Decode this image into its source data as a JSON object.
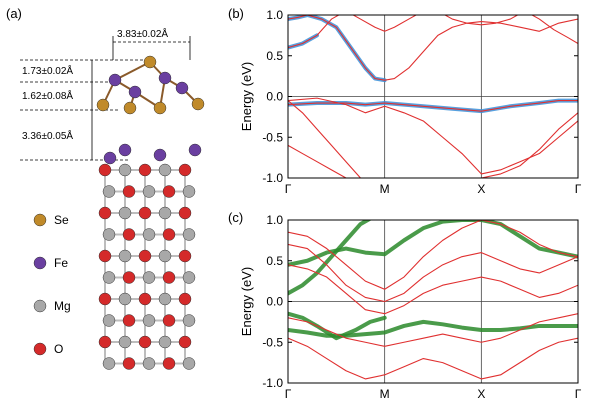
{
  "panels": {
    "a": {
      "label": "(a)",
      "dimensions": [
        "3.83±0.02Å",
        "1.73±0.02Å",
        "1.62±0.08Å",
        "3.36±0.05Å"
      ],
      "legend": [
        {
          "name": "Se",
          "color": "#c08a2a"
        },
        {
          "name": "Fe",
          "color": "#6a3fa0"
        },
        {
          "name": "Mg",
          "color": "#a8a8a8"
        },
        {
          "name": "O",
          "color": "#d42a2a"
        }
      ]
    },
    "b": {
      "label": "(b)"
    },
    "c": {
      "label": "(c)"
    }
  },
  "chart_data": [
    {
      "type": "line",
      "panel": "b",
      "title": "",
      "xlabel": "",
      "ylabel": "Energy (eV)",
      "ylim": [
        -1.0,
        1.0
      ],
      "yticks": [
        "1.0",
        "0.5",
        "0.0",
        "-0.5",
        "-1.0"
      ],
      "xticks": [
        "Γ",
        "M",
        "X",
        "Γ"
      ],
      "fermi_level": 0.0,
      "colors": {
        "bands": "#e03030",
        "projection": "#3a8fd8"
      },
      "series": [
        {
          "role": "band",
          "x": [
            0,
            0.15,
            0.3,
            0.45,
            0.6,
            0.75,
            0.9,
            1,
            1.1,
            1.25,
            1.4,
            1.55,
            1.7,
            1.85,
            2,
            2.15,
            2.3,
            2.45,
            2.6,
            2.75,
            2.9,
            3
          ],
          "y": [
            0.6,
            0.65,
            0.75,
            0.95,
            1.05,
            0.95,
            0.85,
            0.8,
            0.85,
            0.95,
            1.05,
            1.05,
            0.95,
            0.9,
            0.88,
            0.9,
            0.95,
            1.05,
            0.95,
            0.82,
            0.72,
            0.65
          ]
        },
        {
          "role": "band",
          "x": [
            0,
            0.1,
            0.2,
            0.35,
            0.5,
            0.65,
            0.8,
            0.9,
            1,
            1.1,
            1.25,
            1.4,
            1.55,
            1.7,
            1.85,
            2,
            2.2,
            2.4,
            2.6,
            2.8,
            3
          ],
          "y": [
            0.95,
            0.97,
            1.0,
            0.95,
            0.85,
            0.6,
            0.35,
            0.22,
            0.2,
            0.22,
            0.35,
            0.55,
            0.75,
            0.85,
            0.9,
            0.92,
            0.9,
            0.85,
            0.8,
            0.9,
            0.95
          ]
        },
        {
          "role": "band",
          "x": [
            0,
            0.3,
            0.6,
            0.8,
            1,
            1.2,
            1.4,
            1.6,
            1.8,
            2,
            2.2,
            2.4,
            2.6,
            2.8,
            3
          ],
          "y": [
            -0.05,
            -0.02,
            -0.1,
            -0.2,
            -0.12,
            -0.2,
            -0.3,
            -0.5,
            -0.7,
            -0.95,
            -0.9,
            -0.8,
            -0.7,
            -0.5,
            -0.3
          ]
        },
        {
          "role": "band",
          "x": [
            0,
            0.3,
            0.6,
            0.8,
            1,
            1.2,
            1.4,
            1.7,
            2,
            2.3,
            2.6,
            2.8,
            3
          ],
          "y": [
            -0.1,
            -0.08,
            -0.08,
            -0.1,
            -0.08,
            -0.1,
            -0.12,
            -0.15,
            -0.18,
            -0.12,
            -0.08,
            -0.05,
            -0.05
          ]
        },
        {
          "role": "band",
          "x": [
            0,
            0.15,
            0.3,
            0.45,
            0.6,
            0.75
          ],
          "y": [
            -0.05,
            -0.2,
            -0.4,
            -0.6,
            -0.8,
            -1.0
          ]
        },
        {
          "role": "band",
          "x": [
            0,
            0.15,
            0.3,
            0.45,
            0.6
          ],
          "y": [
            -0.6,
            -0.7,
            -0.8,
            -0.9,
            -1.0
          ]
        },
        {
          "role": "band",
          "x": [
            2,
            2.2,
            2.4,
            2.6,
            2.8,
            3
          ],
          "y": [
            -1.0,
            -0.95,
            -0.85,
            -0.65,
            -0.4,
            -0.2
          ]
        },
        {
          "role": "projection",
          "x": [
            0,
            0.3,
            0.6,
            0.8,
            1,
            1.2,
            1.4,
            1.7,
            2,
            2.3,
            2.6,
            2.8,
            3
          ],
          "y": [
            -0.1,
            -0.08,
            -0.08,
            -0.1,
            -0.08,
            -0.1,
            -0.12,
            -0.15,
            -0.18,
            -0.12,
            -0.08,
            -0.05,
            -0.05
          ]
        },
        {
          "role": "projection",
          "x": [
            0,
            0.1,
            0.2,
            0.35,
            0.5,
            0.65,
            0.8,
            0.9,
            1
          ],
          "y": [
            0.95,
            0.97,
            1.0,
            0.95,
            0.85,
            0.6,
            0.35,
            0.22,
            0.2
          ]
        },
        {
          "role": "projection",
          "x": [
            0,
            0.15,
            0.3
          ],
          "y": [
            0.6,
            0.65,
            0.75
          ]
        }
      ]
    },
    {
      "type": "line",
      "panel": "c",
      "title": "",
      "xlabel": "",
      "ylabel": "Energy (eV)",
      "ylim": [
        -1.0,
        1.0
      ],
      "yticks": [
        "1.0",
        "0.5",
        "0.0",
        "-0.5",
        "-1.0"
      ],
      "xticks": [
        "Γ",
        "M",
        "X",
        "Γ"
      ],
      "fermi_level": 0.0,
      "colors": {
        "bands": "#e03030",
        "projection": "#2a8a2a"
      },
      "series": [
        {
          "role": "band",
          "x": [
            0,
            0.2,
            0.4,
            0.6,
            0.8,
            1,
            1.2,
            1.4,
            1.6,
            1.8,
            2,
            2.2,
            2.4,
            2.6,
            2.8,
            3
          ],
          "y": [
            0.85,
            0.8,
            0.65,
            0.45,
            0.25,
            0.15,
            0.3,
            0.55,
            0.75,
            0.9,
            1.0,
            0.95,
            0.85,
            0.7,
            0.6,
            0.55
          ]
        },
        {
          "role": "band",
          "x": [
            0,
            0.2,
            0.4,
            0.6,
            0.8,
            1,
            1.2,
            1.4,
            1.6,
            1.8,
            2,
            2.2,
            2.4,
            2.6,
            2.8,
            3
          ],
          "y": [
            0.7,
            0.65,
            0.45,
            0.2,
            0.05,
            0.0,
            0.1,
            0.3,
            0.45,
            0.55,
            0.6,
            0.5,
            0.4,
            0.35,
            0.45,
            0.55
          ]
        },
        {
          "role": "band",
          "x": [
            0,
            0.2,
            0.4,
            0.6,
            0.8,
            1,
            1.2,
            1.4,
            1.6,
            1.8,
            2,
            2.2,
            2.4,
            2.6,
            2.8,
            3
          ],
          "y": [
            0.45,
            0.4,
            0.3,
            0.1,
            -0.1,
            -0.15,
            -0.05,
            0.1,
            0.2,
            0.25,
            0.3,
            0.25,
            0.15,
            0.05,
            0.1,
            0.2
          ]
        },
        {
          "role": "band",
          "x": [
            0,
            0.2,
            0.4,
            0.6,
            0.8,
            1,
            1.2,
            1.4,
            1.6,
            1.8,
            2,
            2.2,
            2.4,
            2.6,
            2.8,
            3
          ],
          "y": [
            -0.2,
            -0.25,
            -0.35,
            -0.45,
            -0.5,
            -0.55,
            -0.5,
            -0.45,
            -0.4,
            -0.45,
            -0.5,
            -0.45,
            -0.35,
            -0.25,
            -0.2,
            -0.15
          ]
        },
        {
          "role": "band",
          "x": [
            0,
            0.2,
            0.4,
            0.6,
            0.8,
            1,
            1.2,
            1.4,
            1.6,
            1.8,
            2,
            2.2,
            2.4,
            2.6,
            2.8,
            3
          ],
          "y": [
            -0.45,
            -0.55,
            -0.7,
            -0.85,
            -0.95,
            -0.9,
            -0.8,
            -0.7,
            -0.75,
            -0.85,
            -0.95,
            -0.9,
            -0.75,
            -0.6,
            -0.5,
            -0.45
          ]
        },
        {
          "role": "projection",
          "x": [
            0,
            0.2,
            0.4,
            0.6,
            0.8,
            1,
            1.2,
            1.4,
            1.6,
            1.8,
            2,
            2.2,
            2.4,
            2.6,
            2.8,
            3
          ],
          "y": [
            0.45,
            0.5,
            0.6,
            0.65,
            0.6,
            0.58,
            0.75,
            0.9,
            0.98,
            1.0,
            1.0,
            0.95,
            0.8,
            0.65,
            0.6,
            0.55
          ]
        },
        {
          "role": "projection",
          "x": [
            0,
            0.2,
            0.4,
            0.6,
            0.8,
            1,
            1.2,
            1.4,
            1.6,
            1.8,
            2,
            2.2,
            2.4,
            2.6,
            2.8,
            3
          ],
          "y": [
            -0.35,
            -0.38,
            -0.42,
            -0.42,
            -0.4,
            -0.38,
            -0.3,
            -0.25,
            -0.28,
            -0.32,
            -0.35,
            -0.35,
            -0.33,
            -0.3,
            -0.3,
            -0.3
          ]
        },
        {
          "role": "projection",
          "x": [
            0,
            0.15,
            0.3,
            0.45,
            0.6,
            0.75,
            0.9,
            1
          ],
          "y": [
            0.1,
            0.2,
            0.35,
            0.55,
            0.75,
            0.95,
            1.05,
            1.1
          ]
        },
        {
          "role": "projection",
          "x": [
            0,
            0.15,
            0.3,
            0.5,
            0.7,
            0.85,
            1
          ],
          "y": [
            -0.15,
            -0.2,
            -0.3,
            -0.45,
            -0.35,
            -0.25,
            -0.2
          ]
        }
      ]
    }
  ]
}
